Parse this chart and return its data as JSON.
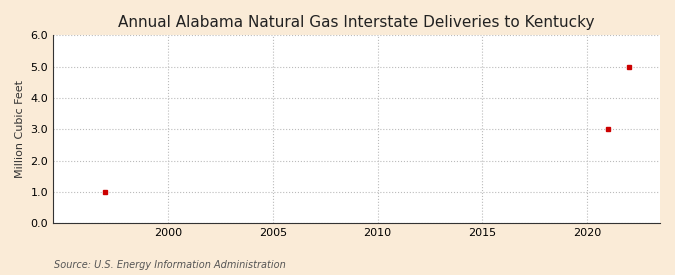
{
  "title": "Annual Alabama Natural Gas Interstate Deliveries to Kentucky",
  "ylabel": "Million Cubic Feet",
  "source": "Source: U.S. Energy Information Administration",
  "x_data": [
    1997,
    2021,
    2022
  ],
  "y_data": [
    1.0,
    3.0,
    5.0
  ],
  "marker_color": "#cc0000",
  "marker_style": "s",
  "marker_size": 3.5,
  "xlim": [
    1994.5,
    2023.5
  ],
  "ylim": [
    0.0,
    6.0
  ],
  "yticks": [
    0.0,
    1.0,
    2.0,
    3.0,
    4.0,
    5.0,
    6.0
  ],
  "xticks": [
    2000,
    2005,
    2010,
    2015,
    2020
  ],
  "plot_bg_color": "#ffffff",
  "fig_bg_color": "#faebd7",
  "grid_color": "#bbbbbb",
  "title_fontsize": 11,
  "label_fontsize": 8,
  "tick_fontsize": 8,
  "source_fontsize": 7
}
